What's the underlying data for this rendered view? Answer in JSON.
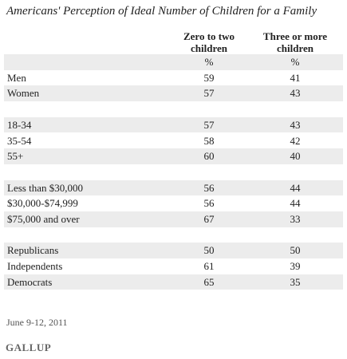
{
  "title": "Americans' Perception of Ideal Number of Children for a Family",
  "table": {
    "columns": [
      "Zero to two children",
      "Three or more children"
    ],
    "units": [
      "%",
      "%"
    ],
    "groups": [
      [
        {
          "label": "Men",
          "values": [
            59,
            41
          ]
        },
        {
          "label": "Women",
          "values": [
            57,
            43
          ]
        }
      ],
      [
        {
          "label": "18-34",
          "values": [
            57,
            43
          ]
        },
        {
          "label": "35-54",
          "values": [
            58,
            42
          ]
        },
        {
          "label": "55+",
          "values": [
            60,
            40
          ]
        }
      ],
      [
        {
          "label": "Less than $30,000",
          "values": [
            56,
            44
          ]
        },
        {
          "label": "$30,000-$74,999",
          "values": [
            56,
            44
          ]
        },
        {
          "label": "$75,000 and over",
          "values": [
            67,
            33
          ]
        }
      ],
      [
        {
          "label": "Republicans",
          "values": [
            50,
            50
          ]
        },
        {
          "label": "Independents",
          "values": [
            61,
            39
          ]
        },
        {
          "label": "Democrats",
          "values": [
            65,
            35
          ]
        }
      ]
    ]
  },
  "footer": {
    "date": "June 9-12, 2011",
    "source": "GALLUP"
  }
}
